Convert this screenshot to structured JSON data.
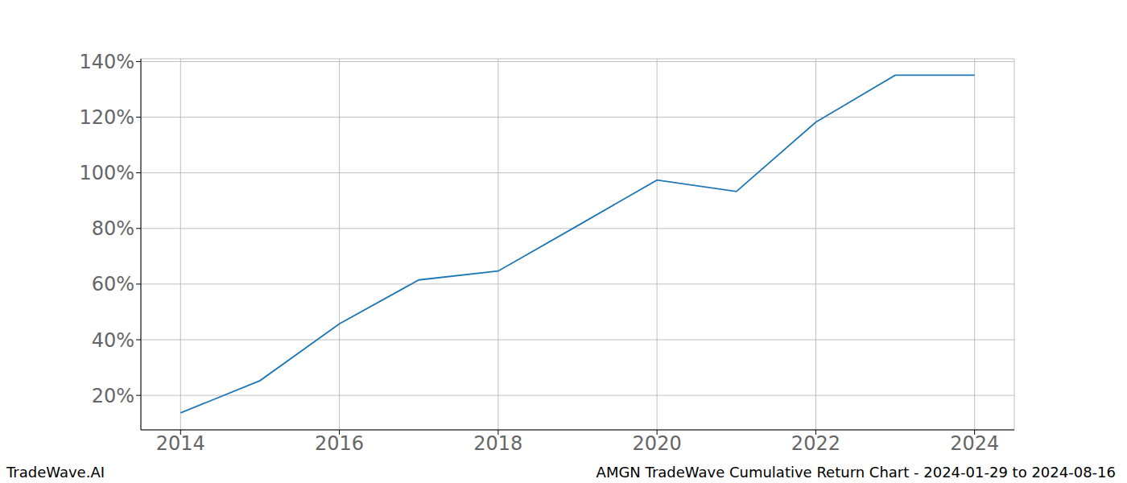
{
  "chart_data": {
    "type": "line",
    "title": "AMGN TradeWave Cumulative Return Chart - 2024-01-29 to 2024-08-16",
    "watermark": "TradeWave.AI",
    "x": [
      2014,
      2015,
      2016,
      2017,
      2018,
      2019,
      2020,
      2021,
      2022,
      2023,
      2024
    ],
    "values": [
      13.7,
      25.3,
      45.7,
      61.5,
      64.7,
      81.0,
      97.4,
      93.3,
      118.2,
      135.1,
      135.1
    ],
    "color": "#1f77b4",
    "xlim": [
      2013.5,
      2024.5
    ],
    "xticks": [
      2014,
      2016,
      2018,
      2020,
      2022,
      2024
    ],
    "ylim": [
      7.6,
      141
    ],
    "yticks": [
      {
        "value": 20,
        "label": "20%"
      },
      {
        "value": 40,
        "label": "40%"
      },
      {
        "value": 60,
        "label": "60%"
      },
      {
        "value": 80,
        "label": "80%"
      },
      {
        "value": 100,
        "label": "100%"
      },
      {
        "value": 120,
        "label": "120%"
      },
      {
        "value": 140,
        "label": "140%"
      }
    ],
    "grid": true
  }
}
